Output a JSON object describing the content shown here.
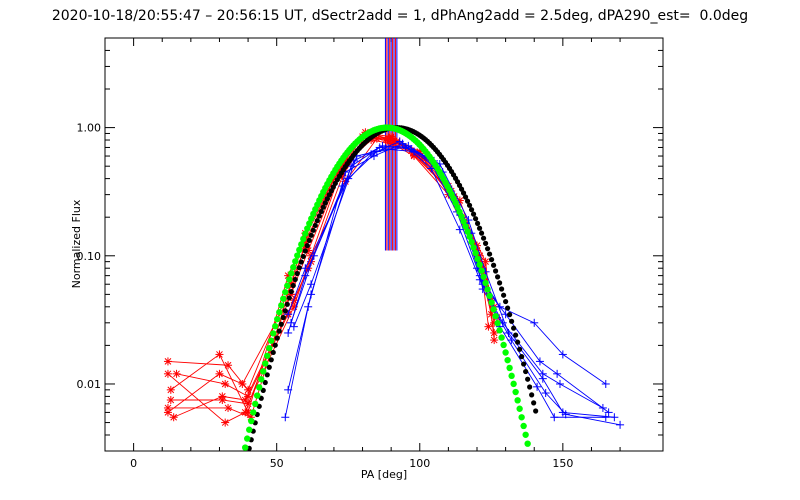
{
  "chart_data": {
    "type": "line",
    "title": "2020-10-18/20:55:47 – 20:56:15 UT, dSectr2add = 1, dPhAng2add = 2.5deg, dPA290_est=  0.0deg",
    "xlabel": "PA [deg]",
    "ylabel": "Normalized Flux",
    "xlim": [
      -10,
      185
    ],
    "ylim": [
      0.003,
      5.0
    ],
    "yscale": "log",
    "grid": false,
    "x_ticks": [
      0,
      50,
      100,
      150
    ],
    "x_tick_labels": [
      "0",
      "50",
      "100",
      "150"
    ],
    "y_ticks": [
      0.01,
      0.1,
      1.0
    ],
    "y_tick_labels": [
      "0.01",
      "0.10",
      "1.00"
    ],
    "colors": {
      "red": "#ff0000",
      "blue": "#0000ff",
      "black": "#000000",
      "green": "#00ff00"
    },
    "red_series": [
      {
        "x": [
          12,
          33,
          40,
          55,
          60,
          70,
          82,
          90,
          100,
          110,
          120,
          126
        ],
        "y": [
          0.015,
          0.014,
          0.009,
          0.06,
          0.15,
          0.4,
          0.9,
          0.85,
          0.65,
          0.35,
          0.12,
          0.04
        ]
      },
      {
        "x": [
          12,
          30,
          38,
          55,
          60,
          72,
          80,
          88,
          98,
          110,
          120,
          125
        ],
        "y": [
          0.006,
          0.012,
          0.01,
          0.05,
          0.13,
          0.45,
          0.85,
          0.8,
          0.6,
          0.3,
          0.1,
          0.035
        ]
      },
      {
        "x": [
          13,
          31,
          40,
          56,
          62,
          73,
          83,
          90,
          99,
          112,
          121,
          126
        ],
        "y": [
          0.0075,
          0.0075,
          0.007,
          0.04,
          0.1,
          0.5,
          0.8,
          0.75,
          0.62,
          0.28,
          0.09,
          0.03
        ]
      },
      {
        "x": [
          12,
          32,
          39,
          55,
          61,
          74,
          84,
          92,
          101,
          113,
          122,
          126
        ],
        "y": [
          0.012,
          0.005,
          0.006,
          0.05,
          0.11,
          0.55,
          0.88,
          0.78,
          0.58,
          0.25,
          0.08,
          0.025
        ]
      },
      {
        "x": [
          13,
          30,
          40,
          54,
          60,
          72,
          81,
          89,
          97,
          111,
          120,
          125
        ],
        "y": [
          0.009,
          0.017,
          0.006,
          0.07,
          0.14,
          0.48,
          0.92,
          0.82,
          0.66,
          0.32,
          0.11,
          0.045
        ]
      },
      {
        "x": [
          14,
          31,
          39,
          56,
          62,
          73,
          82,
          91,
          100,
          112,
          123,
          126
        ],
        "y": [
          0.0055,
          0.008,
          0.0075,
          0.045,
          0.09,
          0.42,
          0.86,
          0.79,
          0.63,
          0.29,
          0.09,
          0.022
        ]
      },
      {
        "x": [
          12,
          33,
          41,
          55,
          60,
          71,
          83,
          90,
          98,
          110,
          121,
          124
        ],
        "y": [
          0.0065,
          0.0065,
          0.0055,
          0.06,
          0.12,
          0.46,
          0.84,
          0.83,
          0.61,
          0.33,
          0.1,
          0.028
        ]
      },
      {
        "x": [
          15,
          32,
          40,
          54,
          61,
          74,
          85,
          92,
          102,
          114,
          122,
          127
        ],
        "y": [
          0.012,
          0.01,
          0.008,
          0.035,
          0.08,
          0.38,
          0.82,
          0.76,
          0.57,
          0.27,
          0.085,
          0.033
        ]
      }
    ],
    "blue_series": [
      {
        "x": [
          54,
          60,
          75,
          85,
          95,
          105,
          115,
          121,
          128,
          140,
          150,
          165
        ],
        "y": [
          0.035,
          0.08,
          0.4,
          0.65,
          0.7,
          0.55,
          0.2,
          0.07,
          0.04,
          0.03,
          0.017,
          0.01
        ]
      },
      {
        "x": [
          54,
          62,
          76,
          86,
          96,
          106,
          116,
          122,
          130,
          142,
          148,
          166
        ],
        "y": [
          0.009,
          0.05,
          0.5,
          0.7,
          0.72,
          0.5,
          0.18,
          0.06,
          0.035,
          0.015,
          0.012,
          0.006
        ]
      },
      {
        "x": [
          53,
          61,
          74,
          84,
          94,
          104,
          114,
          121,
          129,
          143,
          149,
          164
        ],
        "y": [
          0.0055,
          0.04,
          0.45,
          0.6,
          0.75,
          0.48,
          0.16,
          0.065,
          0.03,
          0.012,
          0.01,
          0.0065
        ]
      },
      {
        "x": [
          55,
          63,
          77,
          87,
          97,
          107,
          117,
          123,
          131,
          143,
          150,
          168
        ],
        "y": [
          0.03,
          0.1,
          0.55,
          0.72,
          0.68,
          0.52,
          0.19,
          0.075,
          0.025,
          0.011,
          0.006,
          0.0055
        ]
      },
      {
        "x": [
          54,
          60,
          73,
          83,
          93,
          103,
          113,
          120,
          128,
          141,
          147,
          165
        ],
        "y": [
          0.025,
          0.07,
          0.35,
          0.62,
          0.78,
          0.58,
          0.22,
          0.08,
          0.028,
          0.0095,
          0.0055,
          0.0055
        ]
      },
      {
        "x": [
          56,
          62,
          78,
          88,
          98,
          108,
          118,
          122,
          132,
          144,
          151,
          170
        ],
        "y": [
          0.028,
          0.06,
          0.6,
          0.68,
          0.65,
          0.45,
          0.15,
          0.055,
          0.022,
          0.0085,
          0.0058,
          0.0048
        ]
      }
    ],
    "black_model": {
      "center": 92,
      "sigma": 15.2,
      "amplitude": 1.0,
      "x_range": [
        39,
        141
      ]
    },
    "green_model": {
      "center": 88.5,
      "sigma": 14.6,
      "amplitude": 1.0,
      "x_range": [
        39,
        143
      ]
    },
    "spike": {
      "x_range": [
        88,
        92
      ],
      "y_from": 0.11,
      "y_to": 5.0
    }
  }
}
